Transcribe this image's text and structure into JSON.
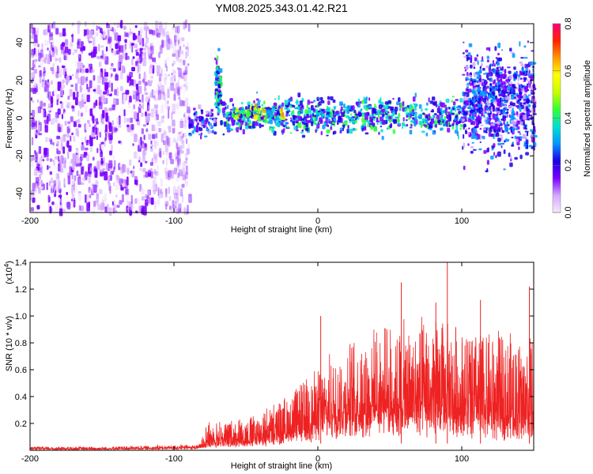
{
  "title": "YM08.2025.343.01.42.R21",
  "chart_data": [
    {
      "type": "heatmap",
      "name": "spectrogram",
      "xlabel": "Height of straight line (km)",
      "ylabel": "Frequency (Hz)",
      "xlim": [
        -200,
        150
      ],
      "ylim": [
        -50,
        50
      ],
      "xticks": [
        -200,
        -100,
        0,
        100
      ],
      "yticks": [
        40,
        20,
        0,
        -20,
        -40
      ],
      "colorbar": {
        "label": "Normalized spectral amplitude",
        "range": [
          0,
          0.8
        ],
        "ticks": [
          0.0,
          0.2,
          0.4,
          0.6,
          0.8
        ],
        "colors": [
          "#f5eaff",
          "#d4a8ff",
          "#7a00ff",
          "#1a00e6",
          "#0096ff",
          "#00e0d0",
          "#33ff33",
          "#c8ff00",
          "#ffff00",
          "#ff9900",
          "#ff2200",
          "#ff007a"
        ]
      },
      "regions": [
        {
          "x": [
            -200,
            -90
          ],
          "freq": [
            -50,
            50
          ],
          "description": "broadband scattered noise",
          "level": 0.15
        },
        {
          "x": [
            -90,
            -72
          ],
          "freq": [
            -12,
            8
          ],
          "level": 0.25
        },
        {
          "x": [
            -72,
            -68
          ],
          "freq": [
            -5,
            38
          ],
          "level": 0.35
        },
        {
          "x": [
            -68,
            100
          ],
          "freq": [
            -12,
            14
          ],
          "level": 0.35
        },
        {
          "x": [
            -60,
            -25
          ],
          "freq": [
            -4,
            8
          ],
          "level": 0.5
        },
        {
          "x": [
            100,
            150
          ],
          "freq": [
            -30,
            45
          ],
          "level": 0.25
        }
      ]
    },
    {
      "type": "line",
      "name": "snr",
      "xlabel": "Height of straight line (km)",
      "ylabel": "SNR (10 * v/v)",
      "scale_note": "(x10",
      "scale_exp": "4",
      "xlim": [
        -200,
        150
      ],
      "ylim": [
        0,
        1.4
      ],
      "xticks": [
        -200,
        -100,
        0,
        100
      ],
      "yticks": [
        0.2,
        0.4,
        0.6,
        0.8,
        1.0,
        1.2,
        1.4
      ],
      "line_color": "#ee2222",
      "envelope": {
        "x": [
          -200,
          -150,
          -110,
          -82,
          -78,
          -60,
          -40,
          -20,
          0,
          20,
          40,
          60,
          80,
          100,
          120,
          140,
          150
        ],
        "base": [
          0.01,
          0.01,
          0.015,
          0.02,
          0.05,
          0.06,
          0.08,
          0.14,
          0.2,
          0.28,
          0.32,
          0.3,
          0.28,
          0.26,
          0.24,
          0.22,
          0.22
        ],
        "peak": [
          0.03,
          0.03,
          0.04,
          0.05,
          0.22,
          0.24,
          0.3,
          0.45,
          0.65,
          0.85,
          0.95,
          1.0,
          1.05,
          1.0,
          0.95,
          0.9,
          0.9
        ]
      },
      "spikes": [
        {
          "x": 2,
          "y": 1.0
        },
        {
          "x": 58,
          "y": 1.25
        },
        {
          "x": 82,
          "y": 1.1
        },
        {
          "x": 90,
          "y": 1.4
        },
        {
          "x": 113,
          "y": 1.12
        },
        {
          "x": 147,
          "y": 1.22
        }
      ]
    }
  ]
}
